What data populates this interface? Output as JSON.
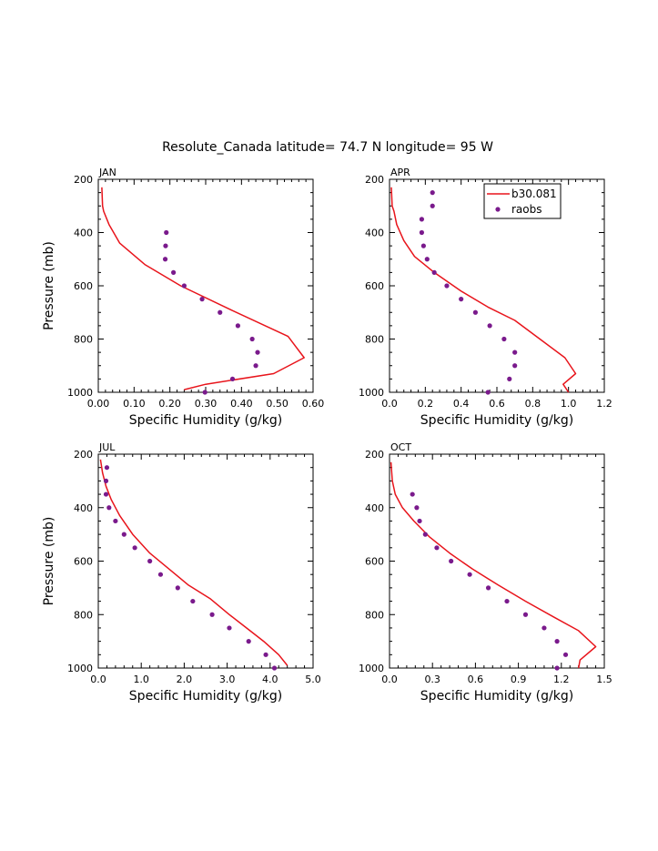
{
  "title": "Resolute_Canada  latitude= 74.7 N longitude= 95 W",
  "colors": {
    "model": "#e8141b",
    "obs": "#7a1a8c"
  },
  "legend": {
    "model_label": "b30.081",
    "obs_label": "raobs"
  },
  "chart_data": [
    {
      "type": "line",
      "panel": "JAN",
      "xlabel": "Specific Humidity (g/kg)",
      "ylabel": "Pressure (mb)",
      "xlim": [
        0,
        0.6
      ],
      "ylim": [
        1000,
        200
      ],
      "xticks": [
        0.0,
        0.1,
        0.2,
        0.3,
        0.4,
        0.5,
        0.6
      ],
      "xtick_labels": [
        "0.00",
        "0.10",
        "0.20",
        "0.30",
        "0.40",
        "0.50",
        "0.60"
      ],
      "yticks": [
        200,
        400,
        600,
        800,
        1000
      ],
      "ytick_labels": [
        "200",
        "400",
        "600",
        "800",
        "1000"
      ],
      "legend": false,
      "series": [
        {
          "name": "b30.081",
          "style": "line",
          "x": [
            0.01,
            0.012,
            0.015,
            0.03,
            0.06,
            0.13,
            0.23,
            0.37,
            0.53,
            0.575,
            0.49,
            0.3,
            0.24
          ],
          "y": [
            230,
            300,
            320,
            370,
            440,
            520,
            600,
            690,
            790,
            870,
            930,
            970,
            990
          ]
        },
        {
          "name": "raobs",
          "style": "points",
          "x": [
            0.19,
            0.188,
            0.187,
            0.21,
            0.24,
            0.29,
            0.34,
            0.39,
            0.43,
            0.445,
            0.44,
            0.375,
            0.298
          ],
          "y": [
            400,
            450,
            500,
            550,
            600,
            650,
            700,
            750,
            800,
            850,
            900,
            950,
            1000
          ]
        }
      ]
    },
    {
      "type": "line",
      "panel": "APR",
      "xlabel": "Specific Humidity (g/kg)",
      "ylabel": "",
      "xlim": [
        0,
        1.2
      ],
      "ylim": [
        1000,
        200
      ],
      "xticks": [
        0.0,
        0.2,
        0.4,
        0.6,
        0.8,
        1.0,
        1.2
      ],
      "xtick_labels": [
        "0.0",
        "0.2",
        "0.4",
        "0.6",
        "0.8",
        "1.0",
        "1.2"
      ],
      "yticks": [
        200,
        400,
        600,
        800,
        1000
      ],
      "ytick_labels": [
        "200",
        "400",
        "600",
        "800",
        "1000"
      ],
      "legend": true,
      "series": [
        {
          "name": "b30.081",
          "style": "line",
          "x": [
            0.01,
            0.015,
            0.025,
            0.04,
            0.08,
            0.14,
            0.25,
            0.4,
            0.55,
            0.7,
            0.84,
            0.98,
            1.04,
            0.97,
            1.0
          ],
          "y": [
            230,
            300,
            320,
            370,
            430,
            490,
            550,
            620,
            680,
            730,
            800,
            870,
            930,
            970,
            1000
          ]
        },
        {
          "name": "raobs",
          "style": "points",
          "x": [
            0.24,
            0.24,
            0.18,
            0.18,
            0.19,
            0.21,
            0.25,
            0.32,
            0.4,
            0.48,
            0.56,
            0.64,
            0.7,
            0.7,
            0.67,
            0.55
          ],
          "y": [
            250,
            300,
            350,
            400,
            450,
            500,
            550,
            600,
            650,
            700,
            750,
            800,
            850,
            900,
            950,
            1000
          ]
        }
      ]
    },
    {
      "type": "line",
      "panel": "JUL",
      "xlabel": "Specific Humidity (g/kg)",
      "ylabel": "Pressure (mb)",
      "xlim": [
        0,
        5
      ],
      "ylim": [
        1000,
        200
      ],
      "xticks": [
        0.0,
        1.0,
        2.0,
        3.0,
        4.0,
        5.0
      ],
      "xtick_labels": [
        "0.0",
        "1.0",
        "2.0",
        "3.0",
        "4.0",
        "5.0"
      ],
      "yticks": [
        200,
        400,
        600,
        800,
        1000
      ],
      "ytick_labels": [
        "200",
        "400",
        "600",
        "800",
        "1000"
      ],
      "legend": false,
      "series": [
        {
          "name": "b30.081",
          "style": "line",
          "x": [
            0.05,
            0.1,
            0.18,
            0.3,
            0.5,
            0.8,
            1.2,
            1.65,
            2.1,
            2.6,
            3.05,
            3.45,
            3.85,
            4.2,
            4.4
          ],
          "y": [
            220,
            270,
            320,
            370,
            430,
            500,
            570,
            630,
            690,
            740,
            800,
            850,
            900,
            950,
            990
          ]
        },
        {
          "name": "raobs",
          "style": "points",
          "x": [
            0.2,
            0.18,
            0.18,
            0.25,
            0.4,
            0.6,
            0.85,
            1.2,
            1.45,
            1.85,
            2.2,
            2.65,
            3.05,
            3.5,
            3.9,
            4.1
          ],
          "y": [
            250,
            300,
            350,
            400,
            450,
            500,
            550,
            600,
            650,
            700,
            750,
            800,
            850,
            900,
            950,
            1000
          ]
        }
      ]
    },
    {
      "type": "line",
      "panel": "OCT",
      "xlabel": "Specific Humidity (g/kg)",
      "ylabel": "",
      "xlim": [
        0,
        1.5
      ],
      "ylim": [
        1000,
        200
      ],
      "xticks": [
        0.0,
        0.3,
        0.6,
        0.9,
        1.2,
        1.5
      ],
      "xtick_labels": [
        "0.0",
        "0.3",
        "0.6",
        "0.9",
        "1.2",
        "1.5"
      ],
      "yticks": [
        200,
        400,
        600,
        800,
        1000
      ],
      "ytick_labels": [
        "200",
        "400",
        "600",
        "800",
        "1000"
      ],
      "legend": false,
      "series": [
        {
          "name": "b30.081",
          "style": "line",
          "x": [
            0.01,
            0.02,
            0.04,
            0.09,
            0.17,
            0.28,
            0.42,
            0.58,
            0.76,
            0.95,
            1.15,
            1.32,
            1.44,
            1.33,
            1.32
          ],
          "y": [
            230,
            300,
            350,
            400,
            450,
            510,
            570,
            630,
            690,
            750,
            810,
            860,
            920,
            970,
            1000
          ]
        },
        {
          "name": "raobs",
          "style": "points",
          "x": [
            0.16,
            0.19,
            0.21,
            0.25,
            0.33,
            0.43,
            0.56,
            0.69,
            0.82,
            0.95,
            1.08,
            1.17,
            1.23,
            1.17
          ],
          "y": [
            350,
            400,
            450,
            500,
            550,
            600,
            650,
            700,
            750,
            800,
            850,
            900,
            950,
            1000
          ]
        }
      ]
    }
  ]
}
